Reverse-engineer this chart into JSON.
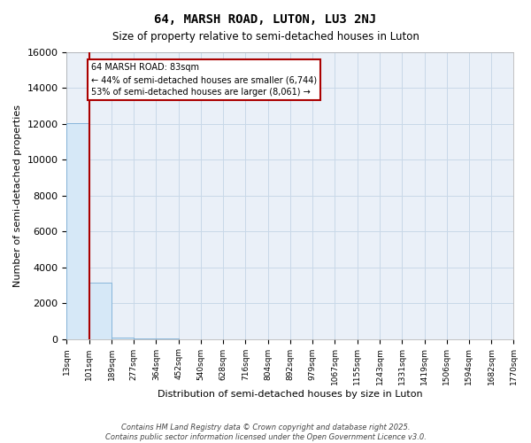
{
  "title": "64, MARSH ROAD, LUTON, LU3 2NJ",
  "subtitle": "Size of property relative to semi-detached houses in Luton",
  "xlabel": "Distribution of semi-detached houses by size in Luton",
  "ylabel": "Number of semi-detached properties",
  "annotation_text": "64 MARSH ROAD: 83sqm\n← 44% of semi-detached houses are smaller (6,744)\n53% of semi-detached houses are larger (8,061) →",
  "bins": [
    13,
    101,
    189,
    277,
    364,
    452,
    540,
    628,
    716,
    804,
    892,
    979,
    1067,
    1155,
    1243,
    1331,
    1419,
    1506,
    1594,
    1682,
    1770
  ],
  "bin_labels": [
    "13sqm",
    "101sqm",
    "189sqm",
    "277sqm",
    "364sqm",
    "452sqm",
    "540sqm",
    "628sqm",
    "716sqm",
    "804sqm",
    "892sqm",
    "979sqm",
    "1067sqm",
    "1155sqm",
    "1243sqm",
    "1331sqm",
    "1419sqm",
    "1506sqm",
    "1594sqm",
    "1682sqm",
    "1770sqm"
  ],
  "counts": [
    12050,
    3120,
    100,
    20,
    5,
    2,
    1,
    1,
    0,
    0,
    0,
    0,
    0,
    0,
    0,
    0,
    0,
    0,
    0,
    0
  ],
  "bar_color": "#d6e8f7",
  "bar_edge_color": "#7aaed6",
  "vline_color": "#aa0000",
  "annotation_box_color": "#aa0000",
  "annotation_bg_color": "#ffffff",
  "grid_color": "#c8d8e8",
  "background_color": "#eaf0f8",
  "ylim": [
    0,
    16000
  ],
  "yticks": [
    0,
    2000,
    4000,
    6000,
    8000,
    10000,
    12000,
    14000,
    16000
  ],
  "footer": "Contains HM Land Registry data © Crown copyright and database right 2025.\nContains public sector information licensed under the Open Government Licence v3.0.",
  "vline_x": 101
}
